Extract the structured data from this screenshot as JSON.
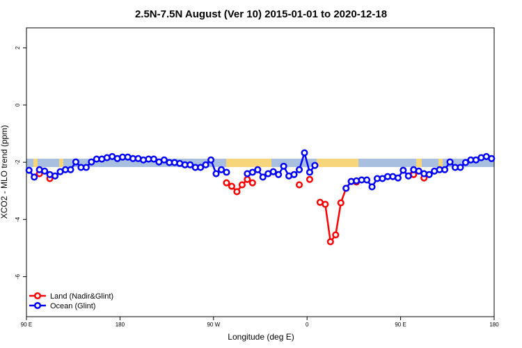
{
  "chart_data": {
    "type": "line",
    "title": "2.5N-7.5N August (Ver 10)   2015-01-01 to 2020-12-18",
    "x_label": "Longitude (deg E)",
    "y_label": "XCO2 - MLO trend (ppm)",
    "xlim": [
      90,
      540
    ],
    "xticks": [
      {
        "value": 90,
        "label": "90 E"
      },
      180,
      {
        "value": 270,
        "label": "90 W"
      },
      {
        "value": 360,
        "label": "0"
      },
      {
        "value": 450,
        "label": "90 E"
      },
      {
        "value": 540,
        "label": "180"
      }
    ],
    "ylim": [
      -7.4,
      2.7
    ],
    "yticks": [
      2,
      0,
      -2,
      -4,
      -6
    ],
    "legend": "bottom-left",
    "x": [
      92.5,
      97.5,
      102.5,
      107.5,
      112.5,
      117.5,
      122.5,
      127.5,
      132.5,
      137.5,
      142.5,
      147.5,
      152.5,
      157.5,
      162.5,
      167.5,
      172.5,
      177.5,
      182.5,
      187.5,
      192.5,
      197.5,
      202.5,
      207.5,
      212.5,
      217.5,
      222.5,
      227.5,
      232.5,
      237.5,
      242.5,
      247.5,
      252.5,
      257.5,
      262.5,
      267.5,
      272.5,
      277.5,
      282.5,
      287.5,
      292.5,
      297.5,
      302.5,
      307.5,
      312.5,
      317.5,
      322.5,
      327.5,
      332.5,
      337.5,
      342.5,
      347.5,
      352.5,
      357.5,
      362.5,
      367.5,
      372.5,
      377.5,
      382.5,
      387.5,
      392.5,
      397.5,
      402.5,
      407.5,
      412.5,
      417.5,
      422.5,
      427.5,
      432.5,
      437.5,
      442.5,
      447.5,
      452.5,
      457.5,
      462.5,
      467.5,
      472.5,
      477.5,
      482.5,
      487.5,
      492.5,
      497.5,
      502.5,
      507.5,
      512.5,
      517.5,
      522.5,
      527.5,
      532.5,
      537.5
    ],
    "series": [
      {
        "name": "Land (Nadir&Glint)",
        "color": "#ff0000",
        "values": [
          null,
          null,
          -2.4,
          null,
          -2.57,
          null,
          null,
          null,
          null,
          null,
          null,
          null,
          null,
          null,
          null,
          null,
          null,
          null,
          null,
          null,
          null,
          null,
          null,
          null,
          null,
          null,
          null,
          null,
          null,
          null,
          null,
          null,
          null,
          null,
          null,
          null,
          null,
          null,
          -2.72,
          -2.84,
          -3.03,
          -2.79,
          -2.6,
          -2.72,
          null,
          null,
          null,
          null,
          null,
          null,
          null,
          null,
          -2.79,
          null,
          -2.6,
          null,
          -3.4,
          -3.47,
          -4.78,
          -4.54,
          -3.42,
          -2.91,
          -2.67,
          -2.69,
          null,
          null,
          null,
          null,
          null,
          null,
          null,
          null,
          null,
          null,
          -2.43,
          null,
          -2.55,
          null,
          null,
          null,
          null,
          null,
          null,
          null,
          null,
          null,
          null,
          null,
          null,
          null
        ]
      },
      {
        "name": "Ocean (Glint)",
        "color": "#0000ff",
        "values": [
          -2.28,
          -2.52,
          -2.26,
          -2.31,
          -2.43,
          -2.48,
          -2.33,
          -2.26,
          -2.26,
          -1.99,
          -2.18,
          -2.18,
          -1.99,
          -1.89,
          -1.89,
          -1.84,
          -1.8,
          -1.87,
          -1.82,
          -1.82,
          -1.87,
          -1.87,
          -1.92,
          -1.89,
          -1.89,
          -1.99,
          -1.92,
          -2.01,
          -2.01,
          -2.04,
          -2.09,
          -2.09,
          -2.18,
          -2.18,
          -2.09,
          -1.92,
          -2.4,
          -2.26,
          -2.35,
          null,
          null,
          null,
          -2.4,
          -2.35,
          -2.26,
          -2.52,
          -2.4,
          -2.33,
          -2.43,
          -2.14,
          -2.48,
          -2.43,
          -2.26,
          -1.67,
          -2.35,
          -2.11,
          null,
          null,
          null,
          null,
          null,
          -2.91,
          -2.67,
          -2.65,
          -2.62,
          -2.62,
          -2.86,
          -2.57,
          -2.57,
          -2.5,
          -2.5,
          -2.55,
          -2.28,
          -2.48,
          -2.26,
          -2.31,
          -2.4,
          -2.43,
          -2.31,
          -2.26,
          -2.26,
          -1.99,
          -2.18,
          -2.18,
          -2.01,
          -1.92,
          -1.92,
          -1.84,
          -1.8,
          -1.87
        ]
      }
    ]
  }
}
